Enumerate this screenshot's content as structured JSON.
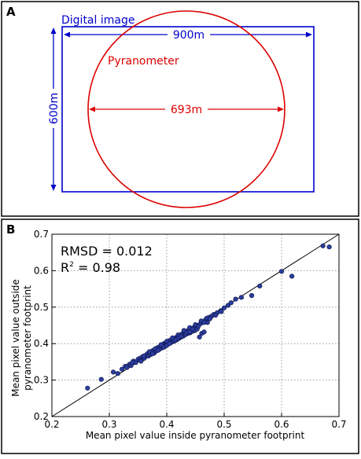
{
  "colors": {
    "frame": "#000000",
    "digital_image": "#0000cc",
    "pyranometer": "#dd0000",
    "points_fill": "#2b3d9e",
    "points_stroke": "#0a0f40",
    "grid": "#9a9a9a"
  },
  "panel_a": {
    "label": "A",
    "digital_image_label": "Digital image",
    "pyranometer_label": "Pyranometer",
    "width_label": "900m",
    "height_label": "600m",
    "diameter_label": "693m"
  },
  "panel_b": {
    "label": "B",
    "stats_rmsd": "RMSD = 0.012",
    "stats_r2_prefix": "R",
    "stats_r2_sup": "2",
    "stats_r2_value": " = 0.98"
  },
  "chart_data": {
    "type": "scatter",
    "xlabel": "Mean pixel value inside pyranometer footprint",
    "ylabel_line1": "Mean pixel value outside",
    "ylabel_line2": "pyranometer footprint",
    "xlim": [
      0.2,
      0.7
    ],
    "ylim": [
      0.2,
      0.7
    ],
    "xticks": [
      "0.2",
      "0.3",
      "0.4",
      "0.5",
      "0.6",
      "0.7"
    ],
    "yticks": [
      "0.2",
      "0.3",
      "0.4",
      "0.5",
      "0.6",
      "0.7"
    ],
    "grid": true,
    "reference_line": [
      [
        0.2,
        0.2
      ],
      [
        0.7,
        0.7
      ]
    ],
    "x": [
      0.262,
      0.286,
      0.307,
      0.315,
      0.322,
      0.328,
      0.331,
      0.335,
      0.338,
      0.342,
      0.346,
      0.35,
      0.353,
      0.356,
      0.358,
      0.361,
      0.364,
      0.366,
      0.368,
      0.37,
      0.372,
      0.374,
      0.376,
      0.378,
      0.38,
      0.382,
      0.384,
      0.386,
      0.388,
      0.39,
      0.392,
      0.394,
      0.395,
      0.397,
      0.399,
      0.401,
      0.403,
      0.405,
      0.407,
      0.409,
      0.411,
      0.413,
      0.415,
      0.417,
      0.419,
      0.421,
      0.423,
      0.425,
      0.427,
      0.429,
      0.431,
      0.433,
      0.435,
      0.437,
      0.439,
      0.441,
      0.443,
      0.445,
      0.447,
      0.449,
      0.451,
      0.453,
      0.455,
      0.457,
      0.459,
      0.461,
      0.463,
      0.465,
      0.468,
      0.471,
      0.474,
      0.478,
      0.482,
      0.488,
      0.494,
      0.5,
      0.507,
      0.512,
      0.52,
      0.53,
      0.548,
      0.562,
      0.6,
      0.618,
      0.672,
      0.683,
      0.34,
      0.36,
      0.38,
      0.4,
      0.42,
      0.44,
      0.46,
      0.43,
      0.41,
      0.39,
      0.37,
      0.45,
      0.47,
      0.355,
      0.375,
      0.395,
      0.415,
      0.435,
      0.455,
      0.475,
      0.495,
      0.4,
      0.42,
      0.44,
      0.385,
      0.405,
      0.425,
      0.445,
      0.465,
      0.485
    ],
    "y": [
      0.278,
      0.302,
      0.322,
      0.318,
      0.33,
      0.338,
      0.335,
      0.343,
      0.34,
      0.352,
      0.348,
      0.357,
      0.36,
      0.355,
      0.364,
      0.36,
      0.368,
      0.372,
      0.366,
      0.375,
      0.37,
      0.378,
      0.381,
      0.374,
      0.385,
      0.38,
      0.389,
      0.383,
      0.392,
      0.387,
      0.396,
      0.39,
      0.4,
      0.393,
      0.403,
      0.398,
      0.407,
      0.401,
      0.41,
      0.404,
      0.413,
      0.407,
      0.416,
      0.41,
      0.42,
      0.414,
      0.423,
      0.418,
      0.427,
      0.421,
      0.431,
      0.425,
      0.434,
      0.428,
      0.438,
      0.43,
      0.441,
      0.434,
      0.444,
      0.436,
      0.447,
      0.44,
      0.45,
      0.418,
      0.455,
      0.428,
      0.46,
      0.432,
      0.466,
      0.458,
      0.472,
      0.475,
      0.48,
      0.485,
      0.49,
      0.498,
      0.505,
      0.512,
      0.522,
      0.527,
      0.532,
      0.558,
      0.598,
      0.585,
      0.668,
      0.665,
      0.348,
      0.366,
      0.386,
      0.406,
      0.424,
      0.444,
      0.462,
      0.436,
      0.416,
      0.397,
      0.378,
      0.452,
      0.47,
      0.352,
      0.372,
      0.39,
      0.41,
      0.43,
      0.448,
      0.468,
      0.488,
      0.395,
      0.415,
      0.432,
      0.382,
      0.4,
      0.42,
      0.44,
      0.458,
      0.478
    ]
  }
}
